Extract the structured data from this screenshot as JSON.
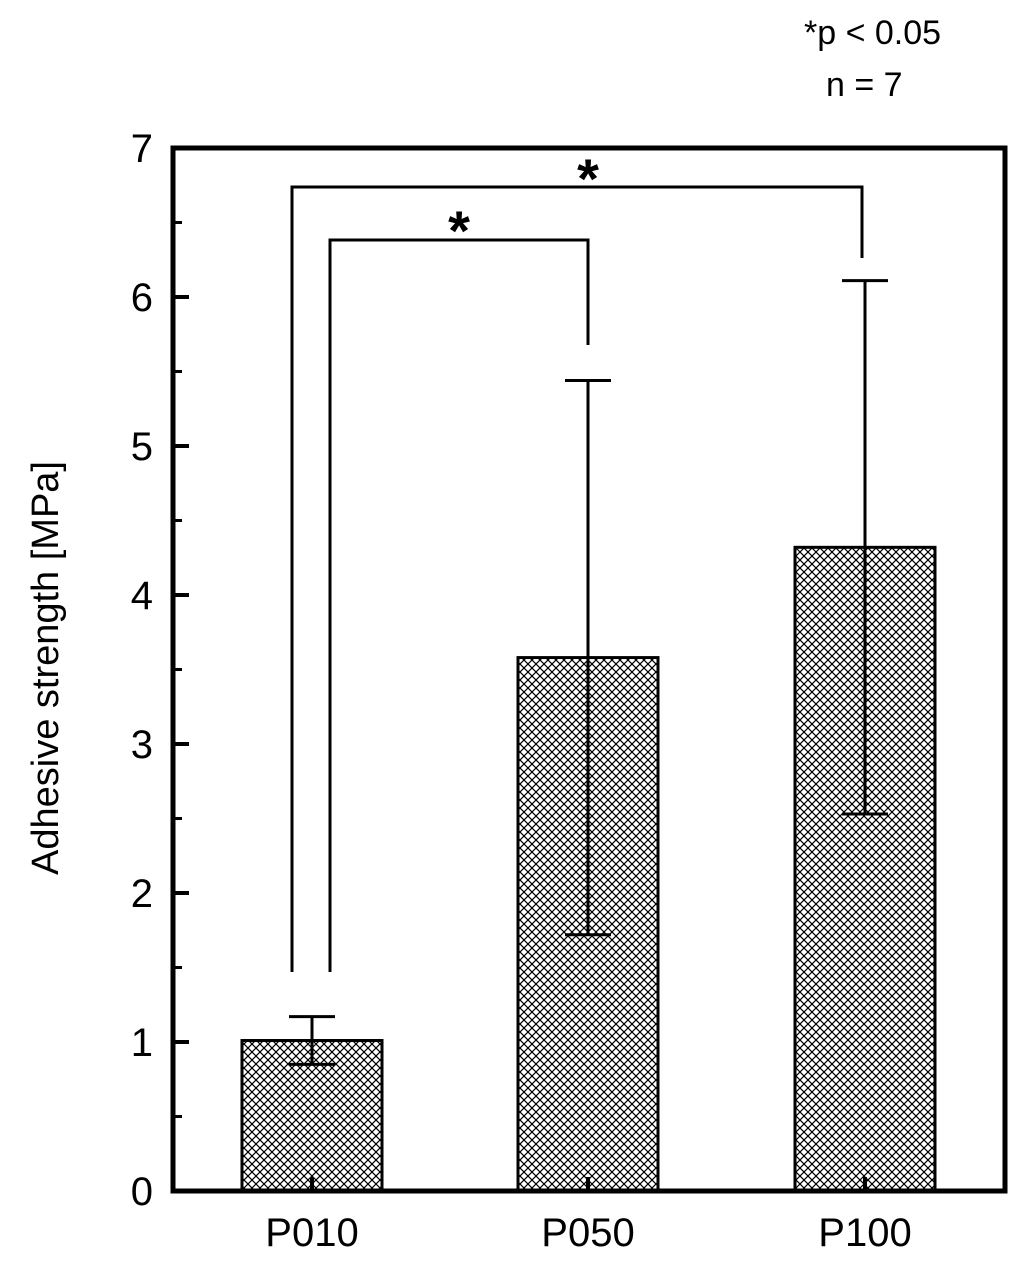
{
  "chart_data": {
    "type": "bar",
    "categories": [
      "P010",
      "P050",
      "P100"
    ],
    "values": [
      1.01,
      3.58,
      4.32
    ],
    "errors": [
      0.16,
      1.86,
      1.79
    ],
    "title": "",
    "xlabel": "",
    "ylabel": "Adhesive strength [MPa]",
    "ylim": [
      0,
      7
    ],
    "yticks": [
      "0",
      "1",
      "2",
      "3",
      "4",
      "5",
      "6",
      "7"
    ],
    "grid": false,
    "bar_fill": "crosshatch",
    "significance": [
      {
        "from": "P010",
        "to": "P050",
        "label": "*"
      },
      {
        "from": "P010",
        "to": "P100",
        "label": "*"
      }
    ],
    "annotations": [
      "*p < 0.05",
      "n = 7"
    ]
  },
  "colors": {
    "ink": "#000000",
    "background": "#ffffff"
  }
}
